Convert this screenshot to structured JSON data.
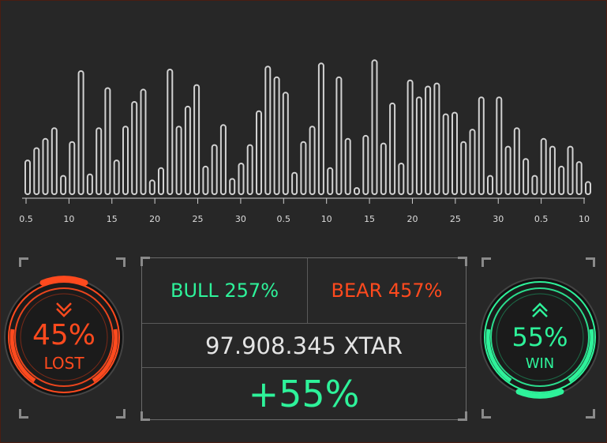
{
  "chart_data": {
    "type": "bar",
    "values": [
      22,
      30,
      36,
      43,
      12,
      34,
      80,
      13,
      43,
      69,
      22,
      44,
      60,
      68,
      9,
      17,
      81,
      44,
      57,
      71,
      18,
      32,
      45,
      10,
      20,
      32,
      54,
      83,
      76,
      66,
      14,
      34,
      44,
      85,
      17,
      76,
      36,
      3,
      38,
      87,
      33,
      59,
      20,
      74,
      63,
      70,
      72,
      52,
      53,
      34,
      42,
      63,
      12,
      63,
      31,
      43,
      23,
      12,
      36,
      31,
      18,
      31,
      21,
      8
    ],
    "x_tick_labels": [
      "0.5",
      "10",
      "15",
      "20",
      "25",
      "30",
      "0.5",
      "10",
      "15",
      "20",
      "25",
      "30",
      "0.5",
      "10"
    ],
    "bar_color": "#d2d2d2"
  },
  "stats": {
    "bull": "BULL 257%",
    "bear": "BEAR 457%",
    "amount": "97.908.345 XTAR",
    "change": "+55%"
  },
  "lost_gauge": {
    "percent": "45%",
    "label": "LOST",
    "color": "#ff4a1e"
  },
  "win_gauge": {
    "percent": "55%",
    "label": "WIN",
    "color": "#2ef29a"
  }
}
